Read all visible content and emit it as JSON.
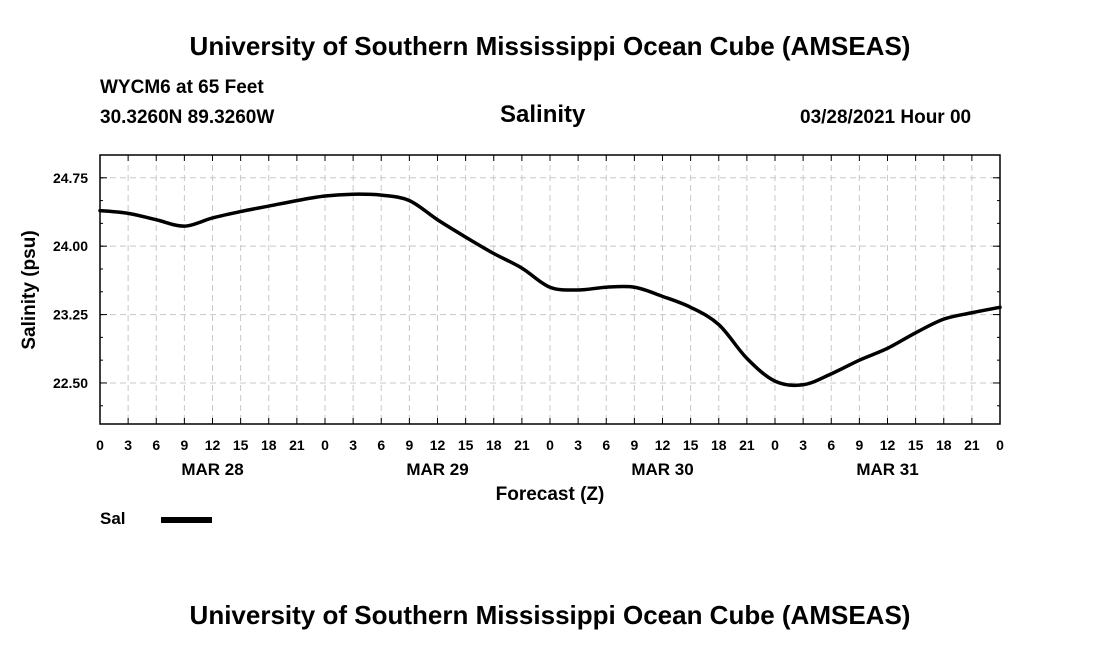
{
  "header": {
    "title_top": "University of Southern Mississippi Ocean Cube (AMSEAS)",
    "title_bottom": "University of Southern Mississippi Ocean Cube (AMSEAS)",
    "station": "WYCM6 at 65 Feet",
    "location": "30.3260N  89.3260W",
    "variable": "Salinity",
    "datetime": "03/28/2021 Hour 00"
  },
  "chart_data": {
    "type": "line",
    "title": "Salinity",
    "xlabel": "Forecast (Z)",
    "ylabel": "Salinity (psu)",
    "xlim": [
      0,
      96
    ],
    "ylim": [
      22.05,
      25.0
    ],
    "y_ticks": [
      22.5,
      23.25,
      24.0,
      24.75
    ],
    "y_tick_labels": [
      "22.50",
      "23.25",
      "24.00",
      "24.75"
    ],
    "x_ticks": [
      0,
      3,
      6,
      9,
      12,
      15,
      18,
      21,
      24,
      27,
      30,
      33,
      36,
      39,
      42,
      45,
      48,
      51,
      54,
      57,
      60,
      63,
      66,
      69,
      72,
      75,
      78,
      81,
      84,
      87,
      90,
      93,
      96
    ],
    "x_tick_labels": [
      "0",
      "3",
      "6",
      "9",
      "12",
      "15",
      "18",
      "21",
      "0",
      "3",
      "6",
      "9",
      "12",
      "15",
      "18",
      "21",
      "0",
      "3",
      "6",
      "9",
      "12",
      "15",
      "18",
      "21",
      "0",
      "3",
      "6",
      "9",
      "12",
      "15",
      "18",
      "21",
      "0"
    ],
    "day_labels": [
      {
        "label": "MAR 28",
        "hour": 12
      },
      {
        "label": "MAR 29",
        "hour": 36
      },
      {
        "label": "MAR 30",
        "hour": 60
      },
      {
        "label": "MAR 31",
        "hour": 84
      }
    ],
    "grid": true,
    "series": [
      {
        "name": "Sal",
        "x": [
          0,
          3,
          6,
          9,
          12,
          15,
          18,
          21,
          24,
          27,
          30,
          33,
          36,
          39,
          42,
          45,
          48,
          51,
          54,
          57,
          60,
          63,
          66,
          69,
          72,
          75,
          78,
          81,
          84,
          87,
          90,
          93,
          96
        ],
        "values": [
          24.39,
          24.36,
          24.29,
          24.22,
          24.31,
          24.38,
          24.44,
          24.5,
          24.55,
          24.57,
          24.56,
          24.5,
          24.29,
          24.1,
          23.92,
          23.76,
          23.55,
          23.52,
          23.55,
          23.55,
          23.45,
          23.33,
          23.14,
          22.77,
          22.52,
          22.48,
          22.6,
          22.75,
          22.88,
          23.05,
          23.2,
          23.27,
          23.33
        ]
      }
    ],
    "legend": {
      "label": "Sal",
      "position": "bottom-left"
    }
  }
}
